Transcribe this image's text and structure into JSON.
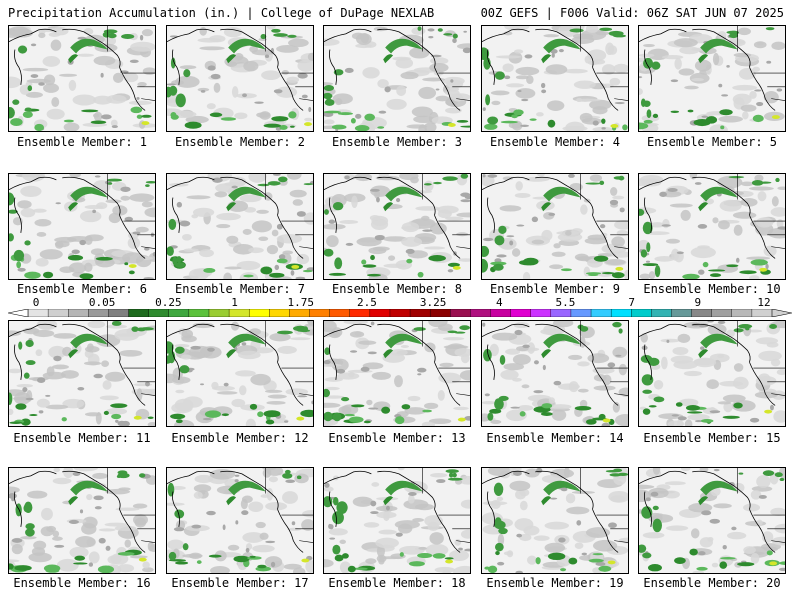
{
  "header": {
    "left_title": "Precipitation Accumulation (in.) | College of DuPage NEXLAB",
    "right_title": "00Z GEFS | F006 Valid: 06Z SAT JUN 07 2025"
  },
  "colorbar": {
    "tick_labels": [
      "0",
      "0.05",
      "0.25",
      "1",
      "1.75",
      "2.5",
      "3.25",
      "4",
      "5.5",
      "7",
      "9",
      "12"
    ],
    "colors": [
      "#e4e4e4",
      "#cfcfcf",
      "#b5b5b5",
      "#9a9a9a",
      "#808080",
      "#1e6b1e",
      "#2e8b2e",
      "#3fa83f",
      "#5cc23c",
      "#9acd32",
      "#d4e62a",
      "#ffff00",
      "#ffd700",
      "#ffaa00",
      "#ff8000",
      "#ff5a00",
      "#ff2a00",
      "#e00000",
      "#c00000",
      "#a00000",
      "#8b0000",
      "#9a1050",
      "#b0107f",
      "#c800a0",
      "#e000d0",
      "#cc33ff",
      "#9966ff",
      "#6699ff",
      "#33ccff",
      "#00e0ff",
      "#00cccc",
      "#33b3b3",
      "#669999",
      "#888888",
      "#a0a0a0",
      "#b8b8b8",
      "#d0d0d0"
    ]
  },
  "panels": [
    {
      "label": "Ensemble Member: 1"
    },
    {
      "label": "Ensemble Member: 2"
    },
    {
      "label": "Ensemble Member: 3"
    },
    {
      "label": "Ensemble Member: 4"
    },
    {
      "label": "Ensemble Member: 5"
    },
    {
      "label": "Ensemble Member: 6"
    },
    {
      "label": "Ensemble Member: 7"
    },
    {
      "label": "Ensemble Member: 8"
    },
    {
      "label": "Ensemble Member: 9"
    },
    {
      "label": "Ensemble Member: 10"
    },
    {
      "label": "Ensemble Member: 11"
    },
    {
      "label": "Ensemble Member: 12"
    },
    {
      "label": "Ensemble Member: 13"
    },
    {
      "label": "Ensemble Member: 14"
    },
    {
      "label": "Ensemble Member: 15"
    },
    {
      "label": "Ensemble Member: 16"
    },
    {
      "label": "Ensemble Member: 17"
    },
    {
      "label": "Ensemble Member: 18"
    },
    {
      "label": "Ensemble Member: 19"
    },
    {
      "label": "Ensemble Member: 20"
    }
  ]
}
